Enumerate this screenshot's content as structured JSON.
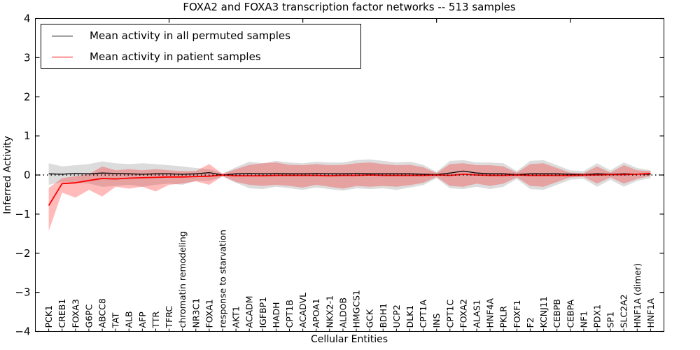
{
  "chart_data": {
    "type": "line",
    "title": "FOXA2 and FOXA3 transcription factor networks -- 513 samples",
    "xlabel": "Cellular Entities",
    "ylabel": "Inferred Activity",
    "ylim": [
      -4,
      4
    ],
    "yticks": [
      4,
      3,
      2,
      1,
      0,
      -1,
      -2,
      -3,
      -4
    ],
    "top_axis_ticks_x": [
      10,
      20,
      30,
      40
    ],
    "grid": false,
    "legend_position": "upper left",
    "zero_line": {
      "y": 0,
      "style": "dotted",
      "color": "#000000"
    },
    "categories": [
      "PCK1",
      "CREB1",
      "FOXA3",
      "G6PC",
      "ABCC8",
      "TAT",
      "ALB",
      "AFP",
      "TTR",
      "TFRC",
      "chromatin remodeling",
      "NR3C1",
      "FOXA1",
      "response to starvation",
      "AKT1",
      "ACADM",
      "IGFBP1",
      "HADH",
      "CPT1B",
      "ACADVL",
      "APOA1",
      "NKX2-1",
      "ALDOB",
      "HMGCS1",
      "GCK",
      "BDH1",
      "UCP2",
      "DLK1",
      "CPT1A",
      "INS",
      "CPT1C",
      "FOXA2",
      "ALAS1",
      "HNF4A",
      "PKLR",
      "FOXF1",
      "F2",
      "KCNJ11",
      "CEBPB",
      "CEBPA",
      "NF1",
      "PDX1",
      "SP1",
      "SLC2A2",
      "HNF1A (dimer)",
      "HNF1A"
    ],
    "series": [
      {
        "name": "Mean activity in all permuted samples",
        "color": "#000000",
        "band_color": "rgba(125,125,125,0.27)",
        "values": [
          0.03,
          0.02,
          0.04,
          0.03,
          0.05,
          0.04,
          0.03,
          0.02,
          0.03,
          0.03,
          0.02,
          0.03,
          0.06,
          0.0,
          0.03,
          0.04,
          0.03,
          0.04,
          0.03,
          0.03,
          0.04,
          0.03,
          0.03,
          0.04,
          0.03,
          0.03,
          0.03,
          0.03,
          0.02,
          0.01,
          0.05,
          0.1,
          0.05,
          0.03,
          0.03,
          0.01,
          0.03,
          0.03,
          0.03,
          0.02,
          0.01,
          0.03,
          0.02,
          0.03,
          0.02,
          0.02
        ],
        "band_upper": [
          0.3,
          0.22,
          0.25,
          0.28,
          0.35,
          0.3,
          0.28,
          0.3,
          0.28,
          0.25,
          0.22,
          0.18,
          0.15,
          0.04,
          0.2,
          0.34,
          0.3,
          0.36,
          0.32,
          0.3,
          0.34,
          0.32,
          0.32,
          0.38,
          0.4,
          0.36,
          0.32,
          0.34,
          0.26,
          0.08,
          0.36,
          0.38,
          0.32,
          0.32,
          0.3,
          0.1,
          0.36,
          0.38,
          0.25,
          0.12,
          0.1,
          0.3,
          0.12,
          0.32,
          0.18,
          0.12
        ],
        "band_lower": [
          -0.25,
          -0.18,
          -0.2,
          -0.22,
          -0.3,
          -0.28,
          -0.25,
          -0.3,
          -0.25,
          -0.22,
          -0.25,
          -0.15,
          -0.15,
          -0.04,
          -0.2,
          -0.34,
          -0.36,
          -0.3,
          -0.34,
          -0.38,
          -0.32,
          -0.36,
          -0.4,
          -0.34,
          -0.36,
          -0.34,
          -0.38,
          -0.32,
          -0.26,
          -0.08,
          -0.34,
          -0.36,
          -0.3,
          -0.36,
          -0.3,
          -0.1,
          -0.36,
          -0.38,
          -0.25,
          -0.12,
          -0.1,
          -0.3,
          -0.12,
          -0.3,
          -0.15,
          -0.08
        ]
      },
      {
        "name": "Mean activity in patient samples",
        "color": "#ff0000",
        "band_color": "rgba(255,25,25,0.30)",
        "values": [
          -0.78,
          -0.22,
          -0.2,
          -0.14,
          -0.09,
          -0.1,
          -0.08,
          -0.07,
          -0.06,
          -0.05,
          -0.05,
          -0.04,
          -0.03,
          0.0,
          -0.02,
          -0.02,
          -0.02,
          -0.01,
          -0.01,
          -0.01,
          -0.01,
          -0.02,
          -0.01,
          -0.01,
          0.0,
          -0.01,
          -0.01,
          -0.01,
          -0.01,
          0.0,
          -0.01,
          0.02,
          0.0,
          -0.01,
          -0.01,
          0.0,
          -0.01,
          -0.01,
          -0.01,
          -0.01,
          0.0,
          0.0,
          0.01,
          0.01,
          0.02,
          0.04
        ],
        "band_upper": [
          -0.33,
          -0.08,
          -0.03,
          0.02,
          0.22,
          0.12,
          0.15,
          0.12,
          0.15,
          0.12,
          0.1,
          0.1,
          0.28,
          0.03,
          0.15,
          0.26,
          0.3,
          0.32,
          0.26,
          0.25,
          0.28,
          0.25,
          0.26,
          0.3,
          0.32,
          0.28,
          0.25,
          0.26,
          0.2,
          0.05,
          0.28,
          0.3,
          0.25,
          0.25,
          0.22,
          0.06,
          0.28,
          0.3,
          0.18,
          0.06,
          0.05,
          0.22,
          0.06,
          0.25,
          0.12,
          0.1
        ],
        "band_lower": [
          -1.43,
          -0.45,
          -0.58,
          -0.38,
          -0.55,
          -0.3,
          -0.35,
          -0.3,
          -0.42,
          -0.25,
          -0.22,
          -0.16,
          -0.25,
          -0.03,
          -0.18,
          -0.25,
          -0.28,
          -0.25,
          -0.28,
          -0.32,
          -0.25,
          -0.3,
          -0.35,
          -0.28,
          -0.3,
          -0.28,
          -0.3,
          -0.26,
          -0.2,
          -0.05,
          -0.28,
          -0.3,
          -0.22,
          -0.28,
          -0.22,
          -0.06,
          -0.28,
          -0.3,
          -0.18,
          -0.06,
          -0.05,
          -0.22,
          -0.06,
          -0.22,
          -0.1,
          -0.02
        ]
      }
    ]
  }
}
